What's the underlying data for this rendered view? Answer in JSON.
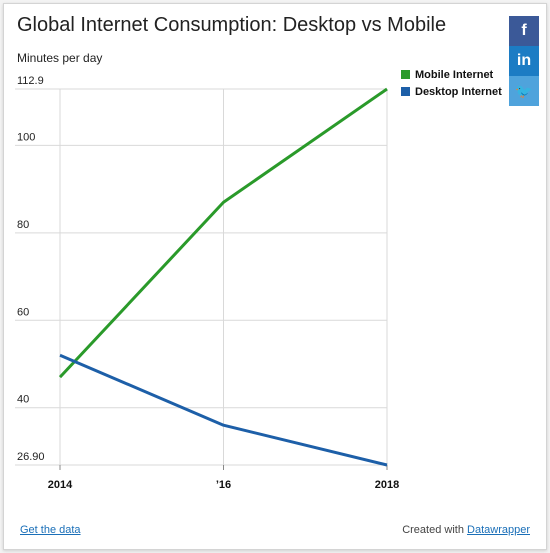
{
  "chart_title": "Global Internet Consumption: Desktop vs Mobile",
  "share_buttons": [
    {
      "name": "facebook",
      "glyph": "f",
      "color": "#3b5998"
    },
    {
      "name": "linkedin",
      "glyph": "in",
      "color": "#1c7cc4"
    },
    {
      "name": "twitter",
      "glyph": "🐦",
      "color": "#4fa3dc"
    }
  ],
  "footer": {
    "get_data": "Get the data",
    "created_with": "Created with",
    "tool_name": "Datawrapper"
  },
  "chart_data": {
    "type": "line",
    "title": "Global Internet Consumption: Desktop vs Mobile",
    "ylabel": "Minutes per day",
    "xlabel": "",
    "x": [
      2014,
      2016,
      2018
    ],
    "x_tick_labels": [
      "2014",
      "’16",
      "2018"
    ],
    "y_ticks": [
      26.9,
      40,
      60,
      80,
      100,
      112.9
    ],
    "y_tick_labels": [
      "26.90",
      "40",
      "60",
      "80",
      "100",
      "112.9"
    ],
    "ylim": [
      26.9,
      112.9
    ],
    "grid": true,
    "legend_position": "top-right",
    "series": [
      {
        "name": "Mobile Internet",
        "color": "#2a9a2a",
        "values": [
          47,
          87,
          112.9
        ]
      },
      {
        "name": "Desktop Internet",
        "color": "#1d5fa8",
        "values": [
          52,
          36,
          26.9
        ]
      }
    ]
  }
}
